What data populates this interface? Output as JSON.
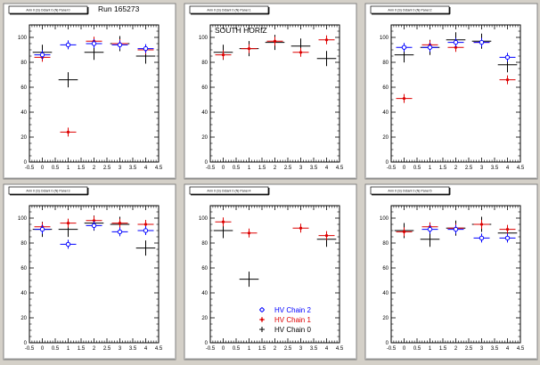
{
  "run_label": "Run 165273",
  "legend": [
    {
      "label": "HV Chain 2",
      "color": "#0000ff",
      "marker": "circle"
    },
    {
      "label": "HV Chain 1",
      "color": "#dd0000",
      "marker": "star"
    },
    {
      "label": "HV Chain 0",
      "color": "#000000",
      "marker": "cross"
    }
  ],
  "chart_data": [
    {
      "type": "scatter",
      "title": "Arm 0 (S) Octant 0 (N) Panel 0",
      "annotation": "",
      "xlim": [
        -0.5,
        4.5
      ],
      "ylim": [
        0,
        110
      ],
      "xticks": [
        -0.5,
        0,
        0.5,
        1,
        1.5,
        2,
        2.5,
        3,
        3.5,
        4,
        4.5
      ],
      "yticks": [
        0,
        20,
        40,
        60,
        80,
        100
      ],
      "series": [
        {
          "color": "#000000",
          "marker": "cross",
          "points": [
            [
              0,
              88
            ],
            [
              1,
              66
            ],
            [
              2,
              88
            ],
            [
              3,
              95
            ],
            [
              4,
              85
            ]
          ]
        },
        {
          "color": "#dd0000",
          "marker": "star",
          "points": [
            [
              0,
              84
            ],
            [
              1,
              24
            ],
            [
              2,
              97
            ],
            [
              3,
              95
            ],
            [
              4,
              90
            ]
          ]
        },
        {
          "color": "#0000ff",
          "marker": "circle",
          "points": [
            [
              0,
              86
            ],
            [
              1,
              94
            ],
            [
              2,
              95
            ],
            [
              3,
              94
            ],
            [
              4,
              91
            ]
          ]
        }
      ]
    },
    {
      "type": "scatter",
      "title": "Arm 0 (S) Octant 0 (N) Panel 1",
      "annotation": "SOUTH HORIZ",
      "xlim": [
        -0.5,
        4.5
      ],
      "ylim": [
        0,
        110
      ],
      "xticks": [
        -0.5,
        0,
        0.5,
        1,
        1.5,
        2,
        2.5,
        3,
        3.5,
        4,
        4.5
      ],
      "yticks": [
        0,
        20,
        40,
        60,
        80,
        100
      ],
      "series": [
        {
          "color": "#000000",
          "marker": "cross",
          "points": [
            [
              0,
              88
            ],
            [
              1,
              91
            ],
            [
              2,
              96
            ],
            [
              3,
              93
            ],
            [
              4,
              83
            ]
          ]
        },
        {
          "color": "#dd0000",
          "marker": "star",
          "points": [
            [
              0,
              86
            ],
            [
              1,
              91
            ],
            [
              2,
              97
            ],
            [
              3,
              88
            ],
            [
              4,
              98
            ]
          ]
        },
        {
          "color": "#0000ff",
          "marker": "circle",
          "points": []
        }
      ]
    },
    {
      "type": "scatter",
      "title": "Arm 0 (S) Octant 0 (N) Panel 2",
      "annotation": "",
      "xlim": [
        -0.5,
        4.5
      ],
      "ylim": [
        0,
        110
      ],
      "xticks": [
        -0.5,
        0,
        0.5,
        1,
        1.5,
        2,
        2.5,
        3,
        3.5,
        4,
        4.5
      ],
      "yticks": [
        0,
        20,
        40,
        60,
        80,
        100
      ],
      "series": [
        {
          "color": "#000000",
          "marker": "cross",
          "points": [
            [
              0,
              86
            ],
            [
              1,
              92
            ],
            [
              2,
              98
            ],
            [
              3,
              97
            ],
            [
              4,
              78
            ]
          ]
        },
        {
          "color": "#dd0000",
          "marker": "star",
          "points": [
            [
              0,
              51
            ],
            [
              1,
              94
            ],
            [
              2,
              92
            ],
            [
              3,
              96
            ],
            [
              4,
              66
            ]
          ]
        },
        {
          "color": "#0000ff",
          "marker": "circle",
          "points": [
            [
              0,
              92
            ],
            [
              1,
              92
            ],
            [
              2,
              96
            ],
            [
              3,
              96
            ],
            [
              4,
              84
            ]
          ]
        }
      ]
    },
    {
      "type": "scatter",
      "title": "Arm 0 (S) Octant 0 (N) Panel 3",
      "annotation": "",
      "xlim": [
        -0.5,
        4.5
      ],
      "ylim": [
        0,
        110
      ],
      "xticks": [
        -0.5,
        0,
        0.5,
        1,
        1.5,
        2,
        2.5,
        3,
        3.5,
        4,
        4.5
      ],
      "yticks": [
        0,
        20,
        40,
        60,
        80,
        100
      ],
      "series": [
        {
          "color": "#000000",
          "marker": "cross",
          "points": [
            [
              0,
              91
            ],
            [
              1,
              91
            ],
            [
              2,
              96
            ],
            [
              3,
              95
            ],
            [
              4,
              76
            ]
          ]
        },
        {
          "color": "#dd0000",
          "marker": "star",
          "points": [
            [
              0,
              93
            ],
            [
              1,
              96
            ],
            [
              2,
              98
            ],
            [
              3,
              96
            ],
            [
              4,
              95
            ]
          ]
        },
        {
          "color": "#0000ff",
          "marker": "circle",
          "points": [
            [
              0,
              91
            ],
            [
              1,
              79
            ],
            [
              2,
              94
            ],
            [
              3,
              89
            ],
            [
              4,
              90
            ]
          ]
        }
      ]
    },
    {
      "type": "scatter",
      "title": "Arm 0 (S) Octant 0 (N) Panel 4",
      "annotation": "",
      "xlim": [
        -0.5,
        4.5
      ],
      "ylim": [
        0,
        110
      ],
      "xticks": [
        -0.5,
        0,
        0.5,
        1,
        1.5,
        2,
        2.5,
        3,
        3.5,
        4,
        4.5
      ],
      "yticks": [
        0,
        20,
        40,
        60,
        80,
        100
      ],
      "series": [
        {
          "color": "#000000",
          "marker": "cross",
          "points": [
            [
              0,
              90
            ],
            [
              1,
              51
            ],
            [
              4,
              83
            ]
          ]
        },
        {
          "color": "#dd0000",
          "marker": "star",
          "points": [
            [
              0,
              97
            ],
            [
              1,
              88
            ],
            [
              3,
              92
            ],
            [
              4,
              86
            ]
          ]
        },
        {
          "color": "#0000ff",
          "marker": "circle",
          "points": []
        }
      ]
    },
    {
      "type": "scatter",
      "title": "Arm 0 (S) Octant 0 (N) Panel 5",
      "annotation": "",
      "xlim": [
        -0.5,
        4.5
      ],
      "ylim": [
        0,
        110
      ],
      "xticks": [
        -0.5,
        0,
        0.5,
        1,
        1.5,
        2,
        2.5,
        3,
        3.5,
        4,
        4.5
      ],
      "yticks": [
        0,
        20,
        40,
        60,
        80,
        100
      ],
      "series": [
        {
          "color": "#000000",
          "marker": "cross",
          "points": [
            [
              0,
              90
            ],
            [
              1,
              83
            ],
            [
              2,
              92
            ],
            [
              3,
              95
            ],
            [
              4,
              88
            ]
          ]
        },
        {
          "color": "#dd0000",
          "marker": "star",
          "points": [
            [
              0,
              89
            ],
            [
              1,
              93
            ],
            [
              2,
              92
            ],
            [
              3,
              95
            ],
            [
              4,
              91
            ]
          ]
        },
        {
          "color": "#0000ff",
          "marker": "circle",
          "points": [
            [
              1,
              91
            ],
            [
              2,
              91
            ],
            [
              3,
              84
            ],
            [
              4,
              84
            ]
          ]
        }
      ]
    }
  ]
}
